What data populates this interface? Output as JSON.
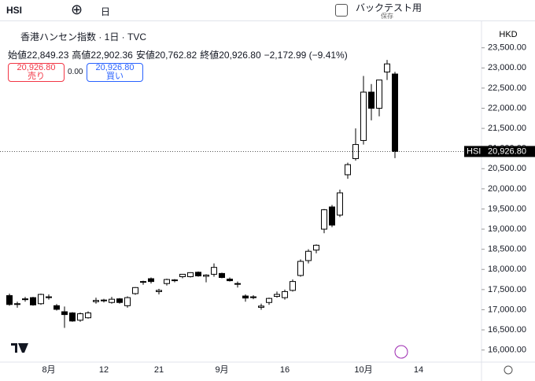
{
  "toolbar": {
    "symbol": "HSI",
    "interval": "日",
    "backtest": "バックテスト用",
    "save": "保存"
  },
  "legend": {
    "title": "香港ハンセン指数 · 1日 · TVC",
    "ohlc": [
      {
        "label": "始値",
        "value": "22,849.23"
      },
      {
        "label": "高値",
        "value": "22,902.36"
      },
      {
        "label": "安値",
        "value": "20,762.82"
      },
      {
        "label": "終値",
        "value": "20,926.80"
      }
    ],
    "change": "−2,172.99 (−9.41%)",
    "sell": {
      "price": "20,926.80",
      "label": "売り"
    },
    "spread": "0.00",
    "buy": {
      "price": "20,926.80",
      "label": "買い"
    }
  },
  "currency": "HKD",
  "chart_data": {
    "type": "candlestick",
    "categories": [
      null,
      null,
      null,
      null,
      null,
      "8月",
      null,
      null,
      null,
      null,
      null,
      null,
      "12",
      null,
      null,
      null,
      null,
      null,
      null,
      "21",
      null,
      null,
      null,
      null,
      null,
      null,
      null,
      "9月",
      null,
      null,
      null,
      null,
      null,
      null,
      null,
      "16",
      null,
      null,
      null,
      null,
      null,
      null,
      null,
      null,
      null,
      "10月",
      null,
      null,
      null,
      null,
      null,
      null,
      "14"
    ],
    "series": [
      {
        "name": "HSI",
        "up_color": "#ffffff",
        "down_color": "#000000",
        "edge_color": "#000000",
        "open": [
          17350,
          17130,
          17250,
          17300,
          17150,
          17300,
          17100,
          16950,
          16920,
          16740,
          16800,
          17200,
          17220,
          17180,
          17270,
          17100,
          17400,
          17700,
          17770,
          17450,
          17650,
          17720,
          17820,
          17820,
          17930,
          17830,
          17880,
          17900,
          17760,
          17650,
          17340,
          17320,
          17060,
          17180,
          17330,
          17300,
          17480,
          17850,
          18220,
          18480,
          19000,
          19550,
          19350,
          20350,
          20750,
          21200,
          22400,
          22000,
          22900,
          22849.23,
          null,
          null,
          null
        ],
        "high": [
          17400,
          17200,
          17320,
          17320,
          17400,
          17380,
          17140,
          17080,
          16940,
          16930,
          16960,
          17300,
          17270,
          17320,
          17290,
          17330,
          17560,
          17720,
          17800,
          17520,
          17770,
          17760,
          17880,
          17930,
          17950,
          17880,
          18150,
          17920,
          17800,
          17700,
          17380,
          17360,
          17150,
          17300,
          17450,
          17500,
          17750,
          18250,
          18500,
          18620,
          19500,
          19600,
          19980,
          20650,
          21500,
          22800,
          22600,
          22700,
          23200,
          22902.36,
          null,
          null,
          null
        ],
        "low": [
          17100,
          17050,
          17200,
          17100,
          17120,
          17250,
          16980,
          16550,
          16700,
          16700,
          16780,
          17150,
          17180,
          17150,
          17150,
          17050,
          17370,
          17620,
          17650,
          17380,
          17600,
          17680,
          17780,
          17800,
          17820,
          17680,
          17820,
          17780,
          17700,
          17550,
          17200,
          17260,
          17000,
          17120,
          17300,
          17250,
          17450,
          17820,
          18150,
          18400,
          18900,
          19050,
          19300,
          20250,
          20700,
          21100,
          21700,
          21800,
          22700,
          20762.82,
          null,
          null,
          null
        ],
        "close": [
          17130,
          17150,
          17270,
          17120,
          17380,
          17320,
          17010,
          16880,
          16720,
          16900,
          16920,
          17230,
          17240,
          17260,
          17180,
          17300,
          17550,
          17680,
          17700,
          17480,
          17750,
          17740,
          17880,
          17920,
          17840,
          17860,
          18050,
          17800,
          17720,
          17640,
          17290,
          17300,
          17090,
          17280,
          17380,
          17450,
          17700,
          18200,
          18450,
          18600,
          19480,
          19100,
          19900,
          20600,
          21100,
          22400,
          22000,
          22700,
          23100,
          20926.8,
          null,
          null,
          null
        ]
      }
    ],
    "last_price": {
      "value": 20926.8,
      "label": "20,926.80"
    },
    "ylim": [
      15700,
      24100
    ],
    "yticks": [
      {
        "value": 16000,
        "label": "16,000.00"
      },
      {
        "value": 16500,
        "label": "16,500.00"
      },
      {
        "value": 17000,
        "label": "17,000.00"
      },
      {
        "value": 17500,
        "label": "17,500.00"
      },
      {
        "value": 18000,
        "label": "18,000.00"
      },
      {
        "value": 18500,
        "label": "18,500.00"
      },
      {
        "value": 19000,
        "label": "19,000.00"
      },
      {
        "value": 19500,
        "label": "19,500.00"
      },
      {
        "value": 20000,
        "label": "20,000.00"
      },
      {
        "value": 20500,
        "label": "20,500.00"
      },
      {
        "value": 21000,
        "label": "21,000.00"
      },
      {
        "value": 21500,
        "label": "21,500.00"
      },
      {
        "value": 22000,
        "label": "22,000.00"
      },
      {
        "value": 22500,
        "label": "22,500.00"
      },
      {
        "value": 23000,
        "label": "23,000.00"
      },
      {
        "value": 23500,
        "label": "23,500.00"
      }
    ]
  }
}
